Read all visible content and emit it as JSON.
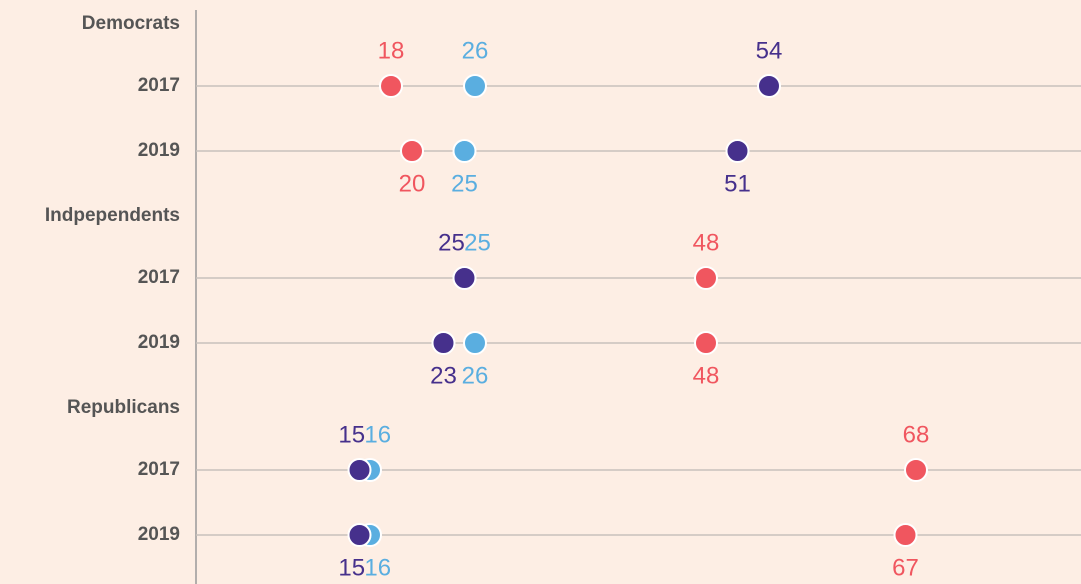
{
  "chart_data": {
    "type": "dot",
    "groups": [
      "Democrats",
      "Indpependents",
      "Republicans"
    ],
    "categories": [
      "2017",
      "2019",
      "2017",
      "2019",
      "2017",
      "2019"
    ],
    "series": [
      {
        "color": "#f0565f",
        "values": [
          18,
          20,
          48,
          48,
          68,
          67
        ]
      },
      {
        "color": "#5aaee0",
        "values": [
          26,
          25,
          25,
          26,
          16,
          16
        ]
      },
      {
        "color": "#46308c",
        "values": [
          54,
          51,
          25,
          23,
          15,
          15
        ]
      }
    ],
    "xlim": [
      0,
      84
    ],
    "grid": true
  }
}
